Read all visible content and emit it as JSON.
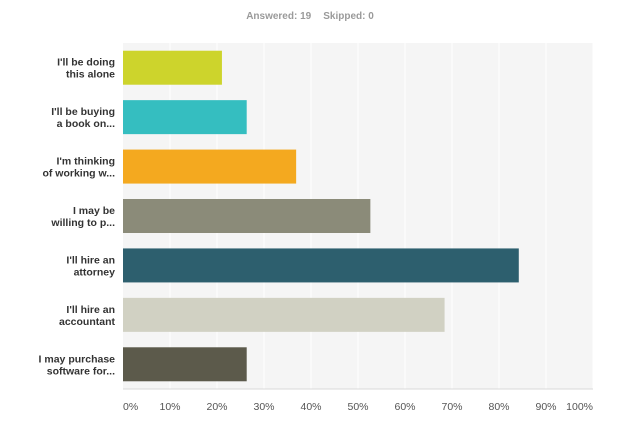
{
  "summary": {
    "answered_label": "Answered: 19",
    "skipped_label": "Skipped: 0"
  },
  "chart_data": {
    "type": "bar",
    "orientation": "horizontal",
    "categories": [
      [
        "I'll be doing",
        "this alone"
      ],
      [
        "I'll be buying",
        "a book on..."
      ],
      [
        "I'm thinking",
        "of working w..."
      ],
      [
        "I may be",
        "willing to p..."
      ],
      [
        "I'll hire an",
        "attorney"
      ],
      [
        "I'll hire an",
        "accountant"
      ],
      [
        "I may purchase",
        "software for..."
      ]
    ],
    "values": [
      21.05,
      26.32,
      36.84,
      52.63,
      84.21,
      68.42,
      26.32
    ],
    "colors": [
      "#cdd42c",
      "#35bec0",
      "#f4a91f",
      "#8b8b79",
      "#2d5f6e",
      "#d1d1c3",
      "#5c5a4b"
    ],
    "xlim": [
      0,
      100
    ],
    "ticks": [
      "0%",
      "10%",
      "20%",
      "30%",
      "40%",
      "50%",
      "60%",
      "70%",
      "80%",
      "90%",
      "100%"
    ],
    "grid": true,
    "background": "#f5f5f5",
    "grid_color": "#ffffff"
  }
}
